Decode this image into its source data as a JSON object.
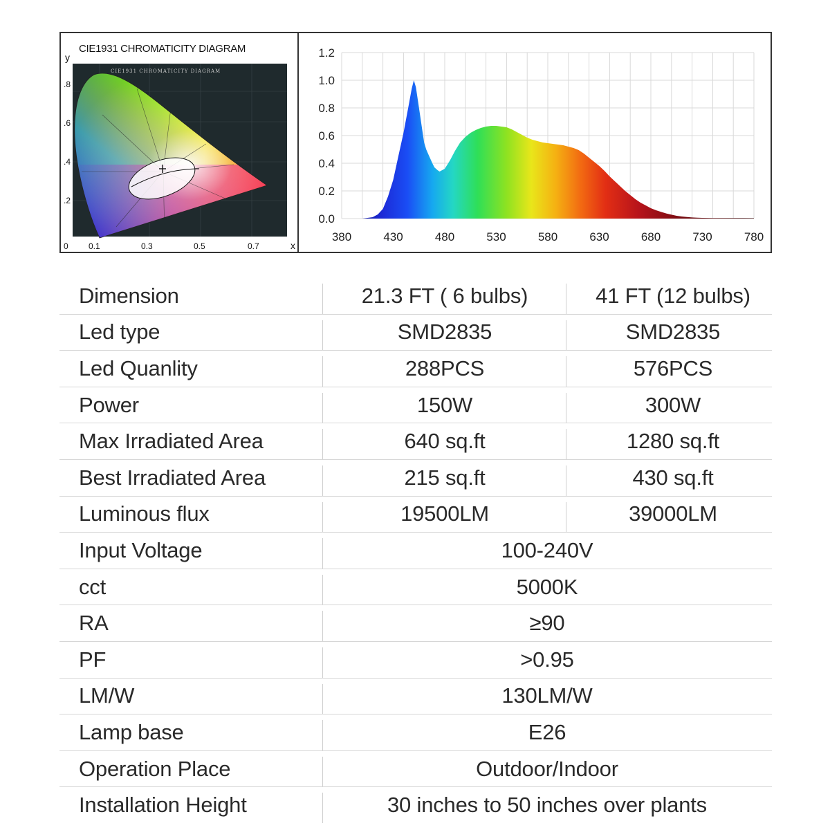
{
  "cie": {
    "title": "CIE1931 CHROMATICITY DIAGRAM",
    "inner_title": "CIE1931 CHROMATICITY DIAGRAM",
    "x_axis_letter": "x",
    "y_axis_letter": "y",
    "x_ticks": [
      "0",
      "0.1",
      "0.3",
      "0.5",
      "0.7"
    ],
    "y_ticks": [
      ".8",
      ".6",
      ".4",
      ".2"
    ]
  },
  "chart_data": {
    "type": "area",
    "title": "",
    "xlabel": "",
    "ylabel": "",
    "xlim": [
      380,
      780
    ],
    "ylim": [
      0,
      1.2
    ],
    "x_ticks": [
      380,
      430,
      480,
      530,
      580,
      630,
      680,
      730,
      780
    ],
    "y_ticks": [
      "0.0",
      "0.2",
      "0.4",
      "0.6",
      "0.8",
      "1.0",
      "1.2"
    ],
    "grid": true,
    "series": [
      {
        "x": [
          380,
          400,
          410,
          415,
          420,
          425,
          430,
          435,
          440,
          445,
          448,
          450,
          452,
          455,
          458,
          460,
          462,
          465,
          468,
          470,
          473,
          475,
          480,
          485,
          490,
          495,
          500,
          505,
          510,
          515,
          520,
          525,
          530,
          535,
          540,
          545,
          550,
          555,
          560,
          565,
          570,
          575,
          580,
          585,
          590,
          595,
          600,
          605,
          610,
          615,
          620,
          625,
          630,
          635,
          640,
          645,
          650,
          655,
          660,
          665,
          670,
          675,
          680,
          685,
          690,
          695,
          700,
          705,
          710,
          715,
          720,
          725,
          730,
          740,
          750,
          760,
          770,
          780
        ],
        "y": [
          0.0,
          0.0,
          0.01,
          0.03,
          0.07,
          0.16,
          0.28,
          0.45,
          0.62,
          0.82,
          0.94,
          1.0,
          0.95,
          0.8,
          0.65,
          0.55,
          0.5,
          0.45,
          0.4,
          0.37,
          0.35,
          0.34,
          0.36,
          0.42,
          0.49,
          0.55,
          0.59,
          0.62,
          0.64,
          0.655,
          0.665,
          0.67,
          0.67,
          0.665,
          0.66,
          0.645,
          0.625,
          0.605,
          0.585,
          0.57,
          0.56,
          0.55,
          0.545,
          0.54,
          0.535,
          0.53,
          0.52,
          0.51,
          0.495,
          0.47,
          0.44,
          0.41,
          0.38,
          0.345,
          0.305,
          0.27,
          0.235,
          0.2,
          0.17,
          0.14,
          0.115,
          0.095,
          0.075,
          0.06,
          0.048,
          0.037,
          0.028,
          0.02,
          0.015,
          0.011,
          0.008,
          0.006,
          0.005,
          0.004,
          0.004,
          0.004,
          0.004,
          0.003
        ]
      }
    ]
  },
  "table": {
    "rows": [
      {
        "label": "Dimension",
        "a": "21.3 FT ( 6 bulbs)",
        "b": "41 FT (12 bulbs)"
      },
      {
        "label": "Led type",
        "a": "SMD2835",
        "b": "SMD2835"
      },
      {
        "label": "Led Quanlity",
        "a": "288PCS",
        "b": "576PCS"
      },
      {
        "label": "Power",
        "a": "150W",
        "b": "300W"
      },
      {
        "label": "Max Irradiated Area",
        "a": "640 sq.ft",
        "b": "1280 sq.ft"
      },
      {
        "label": "Best Irradiated Area",
        "a": "215 sq.ft",
        "b": "430 sq.ft"
      },
      {
        "label": "Luminous flux",
        "a": "19500LM",
        "b": "39000LM"
      },
      {
        "label": "Input Voltage",
        "v": "100-240V"
      },
      {
        "label": "cct",
        "v": "5000K"
      },
      {
        "label": "RA",
        "v": "≥90"
      },
      {
        "label": "PF",
        "v": ">0.95"
      },
      {
        "label": "LM/W",
        "v": "130LM/W"
      },
      {
        "label": "Lamp base",
        "v": "E26"
      },
      {
        "label": "Operation Place",
        "v": "Outdoor/Indoor"
      },
      {
        "label": "Installation Height",
        "v": "30 inches to 50 inches over plants"
      }
    ]
  }
}
